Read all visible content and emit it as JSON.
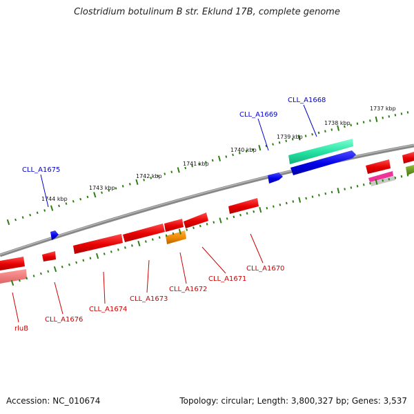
{
  "title": "Clostridium botulinum B str. Eklund 17B, complete genome",
  "footer": {
    "accession": "Accession: NC_010674",
    "summary": "Topology: circular; Length: 3,800,327 bp; Genes: 3,537"
  },
  "scale_labels": [
    "1737 kbp",
    "1738 kbp",
    "1739 kbp",
    "1740 kbp",
    "1741 kbp",
    "1742 kbp",
    "1743 kbp",
    "1744 kbp"
  ],
  "forward_labels": [
    "CLL_A1668",
    "CLL_A1669",
    "CLL_A1675"
  ],
  "reverse_labels": [
    "CLL_A1670",
    "CLL_A1671",
    "CLL_A1672",
    "CLL_A1673",
    "CLL_A1674",
    "CLL_A1676",
    "rluB"
  ],
  "colors": {
    "backbone": "#808080",
    "tick_track": "#2d7d10",
    "gene_red": "#e60000",
    "gene_blue": "#0000e6",
    "gene_teal": "#22e0a0",
    "gene_orange": "#ee8800",
    "gene_pink": "#ee3399",
    "gene_olive": "#5a8a1a",
    "gene_salmon": "#ee7777"
  }
}
